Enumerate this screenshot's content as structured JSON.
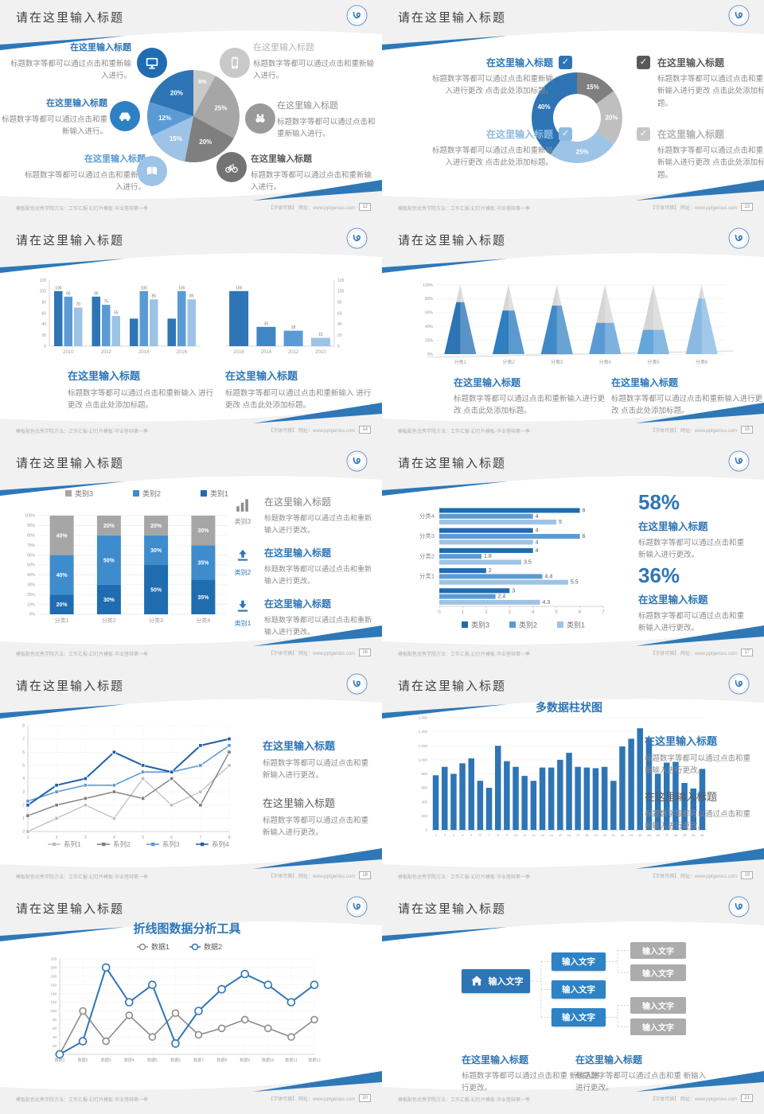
{
  "footer": {
    "left_label": "模板配色优秀学院方法：工作汇报·幻灯片模板·毕业答辩第一季",
    "right_label": "【字体可换】 网址：www.pptgenius.com"
  },
  "colors": {
    "accent_dark_blue": "#2e75b6",
    "accent_mid_blue": "#5b9bd5",
    "accent_light_blue": "#9dc3e6",
    "gray_dark": "#7f7f7f",
    "gray_mid": "#a6a6a6",
    "gray_light": "#c9c9c9"
  },
  "slides": [
    {
      "title": "请在这里输入标题",
      "page": "12",
      "type": "pie",
      "charts": [
        0
      ],
      "callouts": [
        {
          "pos": "l1",
          "icon": "monitor",
          "icon_color": "#1f6cb0",
          "title": "在这里输入标题",
          "title_color": "#2e75b6",
          "title_bold": true,
          "body": "标题数字等都可以通过点击和重新输入进行。"
        },
        {
          "pos": "l2",
          "icon": "car",
          "icon_color": "#2e80c4",
          "title": "在这里输入标题",
          "title_color": "#2e75b6",
          "title_bold": true,
          "body": "标题数字等都可以通过点击和重新输入进行。"
        },
        {
          "pos": "l3",
          "icon": "book",
          "icon_color": "#9dc3e6",
          "title": "在这里输入标题",
          "title_color": "#5b9bd5",
          "title_bold": true,
          "body": "标题数字等都可以通过点击和重新输入进行。"
        },
        {
          "pos": "r1",
          "icon": "phone",
          "icon_color": "#c9c9c9",
          "title": "在这里输入标题",
          "title_color": "#b3b3b3",
          "title_bold": false,
          "body": "标题数字等都可以通过点击和重新输入进行。"
        },
        {
          "pos": "r2",
          "icon": "binoculars",
          "icon_color": "#9a9a9a",
          "title": "在这里输入标题",
          "title_color": "#8c8c8c",
          "title_bold": false,
          "body": "标题数字等都可以通过点击和重新输入进行。"
        },
        {
          "pos": "r3",
          "icon": "bike",
          "icon_color": "#737373",
          "title": "在这里输入标题",
          "title_color": "#595959",
          "title_bold": true,
          "body": "标题数字等都可以通过点击和重新输入进行。"
        }
      ]
    },
    {
      "title": "请在这里输入标题",
      "page": "13",
      "type": "donut",
      "charts": [
        1
      ],
      "callouts": [
        {
          "pos": "l1",
          "box_color": "#2e75b6",
          "title": "在这里输入标题",
          "title_color": "#2e75b6",
          "body": "标题数字等都可以通过点击和重新输入进行更改 点击此处添加标题。"
        },
        {
          "pos": "l2",
          "box_color": "#8fbadf",
          "title": "在这里输入标题",
          "title_color": "#8fbadf",
          "body": "标题数字等都可以通过点击和重新输入进行更改 点击此处添加标题。"
        },
        {
          "pos": "r1",
          "box_color": "#595959",
          "title": "在这里输入标题",
          "title_color": "#595959",
          "body": "标题数字等都可以通过点击和重新输入进行更改 点击此处添加标题。"
        },
        {
          "pos": "r2",
          "box_color": "#c6c6c6",
          "title": "在这里输入标题",
          "title_color": "#b3b3b3",
          "body": "标题数字等都可以通过点击和重新输入进行更改 点击此处添加标题。"
        }
      ]
    },
    {
      "title": "请在这里输入标题",
      "page": "14",
      "type": "two-bars",
      "charts": [
        2,
        3
      ],
      "callouts": [
        {
          "pos": "cl",
          "title": "在这里输入标题",
          "title_color": "#2e75b6",
          "body": "标题数字等都可以通过点击和重新输入 进行更改 点击此处添加标题。"
        },
        {
          "pos": "cr",
          "title": "在这里输入标题",
          "title_color": "#2e75b6",
          "body": "标题数字等都可以通过点击和重新输入 进行更改 点击此处添加标题。"
        }
      ]
    },
    {
      "title": "请在这里输入标题",
      "page": "15",
      "type": "pyramid",
      "charts": [
        4
      ],
      "callouts": [
        {
          "pos": "cl",
          "title": "在这里输入标题",
          "title_color": "#2e75b6",
          "body": "标题数字等都可以通过点击和重新输入进行更 改 点击此处添加标题。"
        },
        {
          "pos": "cr",
          "title": "在这里输入标题",
          "title_color": "#2e75b6",
          "body": "标题数字等都可以通过点击和重新输入进行更 改 点击此处添加标题。"
        }
      ]
    },
    {
      "title": "请在这里输入标题",
      "page": "16",
      "type": "stacked",
      "charts": [
        5
      ],
      "callouts": [
        {
          "pos": "row1",
          "icon": "bar-chart",
          "icon_color": "#8c8c8c",
          "icon_label": "类别3",
          "title": "在这里输入标题",
          "title_color": "#808080",
          "title_bold": false,
          "body": "标题数字等都可以通过点击和重新输入进行更改。"
        },
        {
          "pos": "row2",
          "icon": "upload",
          "icon_color": "#2e75b6",
          "icon_label": "类别2",
          "title": "在这里输入标题",
          "title_color": "#2e75b6",
          "title_bold": true,
          "body": "标题数字等都可以通过点击和重新输入进行更改。"
        },
        {
          "pos": "row3",
          "icon": "download",
          "icon_color": "#2e75b6",
          "icon_label": "类别1",
          "title": "在这里输入标题",
          "title_color": "#2e75b6",
          "title_bold": true,
          "body": "标题数字等都可以通过点击和重新输入进行更改。"
        }
      ]
    },
    {
      "title": "请在这里输入标题",
      "page": "17",
      "type": "hbar",
      "charts": [
        6
      ],
      "stats": [
        {
          "pct": "58%",
          "title": "在这里输入标题",
          "body": "标题数字等都可以通过点击和重新输入进行更改。"
        },
        {
          "pct": "36%",
          "title": "在这里输入标题",
          "body": "标题数字等都可以通过点击和重新输入进行更改。"
        }
      ]
    },
    {
      "title": "请在这里输入标题",
      "page": "18",
      "type": "line4",
      "charts": [
        7
      ],
      "callouts": [
        {
          "pos": "r1",
          "title": "在这里输入标题",
          "title_color": "#2e75b6",
          "title_bold": true,
          "body": "标题数字等都可以通过点击和重新输入进行更改。"
        },
        {
          "pos": "r2",
          "title": "在这里输入标题",
          "title_color": "#595959",
          "title_bold": false,
          "body": "标题数字等都可以通过点击和重新输入进行更改。"
        }
      ]
    },
    {
      "title": "请在这里输入标题",
      "page": "19",
      "type": "columns",
      "charts": [
        8
      ],
      "callouts": [
        {
          "pos": "r1",
          "title": "在这里输入标题",
          "title_color": "#2e75b6",
          "title_bold": true,
          "body": "标题数字等都可以通过点击和重新输入进行更改。"
        },
        {
          "pos": "r2",
          "title": "在这里输入标题",
          "title_color": "#595959",
          "title_bold": false,
          "body": "标题数字等都可以通过点击和重新输入进行更改。"
        }
      ]
    },
    {
      "title": "请在这里输入标题",
      "page": "20",
      "type": "line2",
      "charts": [
        9
      ],
      "callouts": []
    },
    {
      "title": "请在这里输入标题",
      "page": "21",
      "type": "tree",
      "charts": [],
      "tree": {
        "root": "输入文字",
        "children": [
          "输入文字",
          "输入文字",
          "输入文字"
        ],
        "leaves": [
          "输入文字",
          "输入文字",
          "输入文字",
          "输入文字"
        ]
      },
      "callouts": [
        {
          "pos": "bl",
          "title": "在这里输入标题",
          "title_color": "#2e75b6",
          "body": "标题数字等都可以通过点击和重 新输入进行更改。"
        },
        {
          "pos": "br",
          "title": "在这里输入标题",
          "title_color": "#2e75b6",
          "body": "标题数字等都可以通过点击和重 新输入进行更改。"
        }
      ]
    }
  ],
  "chart_data": [
    {
      "type": "pie",
      "values": [
        8,
        25,
        20,
        15,
        12,
        20
      ],
      "labels": [
        "8%",
        "25%",
        "20%",
        "15%",
        "12%",
        "20%"
      ],
      "colors": [
        "#c9c9c9",
        "#a6a6a6",
        "#7f7f7f",
        "#9dc3e6",
        "#5b9bd5",
        "#2e75b6"
      ],
      "start": "top-clockwise"
    },
    {
      "type": "pie",
      "inner_ratio": 0.52,
      "values": [
        15,
        20,
        25,
        40
      ],
      "labels": [
        "15%",
        "20%",
        "25%",
        "40%"
      ],
      "colors": [
        "#7f7f7f",
        "#bfbfbf",
        "#9dc3e6",
        "#2e75b6"
      ],
      "start": "top-clockwise"
    },
    {
      "type": "bar",
      "categories": [
        "2010",
        "2012",
        "2014",
        "2016"
      ],
      "series": [
        {
          "name": "series1",
          "color": "#2e75b6",
          "values": [
            100,
            90,
            50,
            50
          ]
        },
        {
          "name": "series2",
          "color": "#5b9bd5",
          "values": [
            90,
            75,
            100,
            100
          ]
        },
        {
          "name": "series3",
          "color": "#9dc3e6",
          "values": [
            70,
            55,
            85,
            85
          ]
        }
      ],
      "bar_labels": [
        [
          "100",
          "90",
          "70"
        ],
        [
          "90",
          "75",
          "55"
        ],
        [
          "",
          "100",
          "85"
        ],
        [
          "",
          "100",
          "85"
        ]
      ],
      "ylim": [
        0,
        120
      ],
      "yticks": [
        "0",
        "20",
        "40",
        "60",
        "80",
        "100",
        "120"
      ],
      "axis_side": "left"
    },
    {
      "type": "bar",
      "categories": [
        "2016",
        "2014",
        "2012",
        "2010"
      ],
      "values": [
        100,
        35,
        28,
        15
      ],
      "labels": [
        "100",
        "35",
        "28",
        "15"
      ],
      "colors": [
        "#2e75b6",
        "#3f87c4",
        "#5b9bd5",
        "#9dc3e6"
      ],
      "ylim": [
        0,
        120
      ],
      "yticks": [
        "0",
        "20",
        "40",
        "60",
        "80",
        "100",
        "120"
      ],
      "axis_side": "right"
    },
    {
      "type": "pyramid",
      "categories": [
        "分类1",
        "分类2",
        "分类3",
        "分类4",
        "分类5",
        "分类6"
      ],
      "fill_percent": [
        75,
        63,
        70,
        45,
        35,
        80
      ],
      "colors": [
        "#2e75b6",
        "#2e7ec0",
        "#3f8ac6",
        "#5b9bd5",
        "#64a5da",
        "#8abae4"
      ],
      "top_color": "#d6d6d6",
      "yticks": [
        "0%",
        "20%",
        "40%",
        "60%",
        "80%",
        "100%"
      ],
      "ylim": [
        0,
        100
      ]
    },
    {
      "type": "bar",
      "stacked": true,
      "categories": [
        "分类1",
        "分类2",
        "分类3",
        "分类4"
      ],
      "series": [
        {
          "name": "类别1",
          "color": "#1f6cb0",
          "values": [
            20,
            30,
            50,
            35
          ]
        },
        {
          "name": "类别2",
          "color": "#3f8ccc",
          "values": [
            40,
            50,
            30,
            35
          ]
        },
        {
          "name": "类别3",
          "color": "#a6a6a6",
          "values": [
            40,
            20,
            20,
            30
          ]
        }
      ],
      "legend": [
        "类别3",
        "类别2",
        "类别1"
      ],
      "legend_colors": [
        "#a6a6a6",
        "#3f8ccc",
        "#1f6cb0"
      ],
      "yticks": [
        "0%",
        "10%",
        "20%",
        "30%",
        "40%",
        "50%",
        "60%",
        "70%",
        "80%",
        "90%",
        "100%"
      ],
      "ylim": [
        0,
        100
      ]
    },
    {
      "type": "bar",
      "orientation": "horizontal",
      "categories": [
        "分类4",
        "分类3",
        "分类2",
        "分类1",
        ""
      ],
      "series": [
        {
          "name": "类别3",
          "color": "#1f6cb0",
          "values": [
            6,
            4,
            4,
            2,
            3
          ]
        },
        {
          "name": "类别2",
          "color": "#5b9bd5",
          "values": [
            4,
            6,
            1.8,
            4.4,
            2.4
          ]
        },
        {
          "name": "类别1",
          "color": "#9dc3e6",
          "values": [
            5,
            4,
            3.5,
            5.5,
            4.3
          ]
        }
      ],
      "xticks": [
        "0",
        "1",
        "2",
        "3",
        "4",
        "5",
        "6",
        "7"
      ],
      "xlim": [
        0,
        7
      ],
      "legend_position": "bottom"
    },
    {
      "type": "line",
      "x_labels": [
        "1",
        "2",
        "3",
        "4",
        "5",
        "6",
        "7",
        "8"
      ],
      "series": [
        {
          "name": "系列1",
          "color": "#bfbfbf",
          "values": [
            0,
            1,
            2,
            1,
            4,
            2,
            3,
            5
          ]
        },
        {
          "name": "系列2",
          "color": "#7f7f7f",
          "values": [
            1.2,
            2,
            2.5,
            3,
            2.5,
            4,
            2,
            6
          ]
        },
        {
          "name": "系列3",
          "color": "#5b9bd5",
          "values": [
            2.3,
            3,
            3.5,
            3.5,
            4.5,
            4.5,
            5,
            6.5
          ]
        },
        {
          "name": "系列4",
          "color": "#1f5fa8",
          "values": [
            2,
            3.5,
            4,
            6,
            5,
            4.5,
            6.5,
            7
          ]
        }
      ],
      "ylim": [
        0,
        8
      ],
      "yticks": [
        "0",
        "1",
        "2",
        "3",
        "4",
        "5",
        "6",
        "7",
        "8"
      ],
      "marker": "square",
      "legend_position": "bottom"
    },
    {
      "type": "bar",
      "title": "多数据柱状图",
      "x_labels": [
        "1",
        "2",
        "3",
        "4",
        "5",
        "6",
        "7",
        "8",
        "9",
        "10",
        "11",
        "12",
        "13",
        "14",
        "15",
        "16",
        "17",
        "18",
        "19",
        "20",
        "21",
        "22",
        "23",
        "24",
        "25",
        "26",
        "27",
        "28",
        "29",
        "30",
        "31"
      ],
      "values": [
        780,
        900,
        800,
        950,
        1020,
        700,
        600,
        1200,
        980,
        900,
        770,
        700,
        890,
        890,
        1000,
        1100,
        900,
        890,
        880,
        900,
        700,
        1190,
        1300,
        1450,
        1300,
        800,
        960,
        970,
        670,
        590,
        870
      ],
      "color": "#2e75b6",
      "ylim": [
        0,
        1600
      ],
      "yticks": [
        "0",
        "200",
        "400",
        "600",
        "800",
        "1,000",
        "1,200",
        "1,400",
        "1,600"
      ]
    },
    {
      "type": "line",
      "title": "折线图数据分析工具",
      "x_labels": [
        "数据1",
        "数据2",
        "数据3",
        "数据4",
        "数据5",
        "数据6",
        "数据7",
        "数据8",
        "数据9",
        "数据10",
        "数据11",
        "数据12"
      ],
      "series": [
        {
          "name": "数据1",
          "color": "#8c8c8c",
          "values": [
            0,
            100,
            30,
            90,
            40,
            95,
            45,
            60,
            80,
            60,
            40,
            80
          ]
        },
        {
          "name": "数据2",
          "color": "#2e75b6",
          "values": [
            0,
            30,
            200,
            120,
            160,
            25,
            100,
            150,
            185,
            160,
            120,
            160
          ]
        }
      ],
      "ylim": [
        0,
        220
      ],
      "yticks": [
        "0",
        "20",
        "40",
        "60",
        "80",
        "100",
        "120",
        "140",
        "160",
        "180",
        "200",
        "220"
      ],
      "marker": "circle-open",
      "legend_position": "top"
    }
  ]
}
